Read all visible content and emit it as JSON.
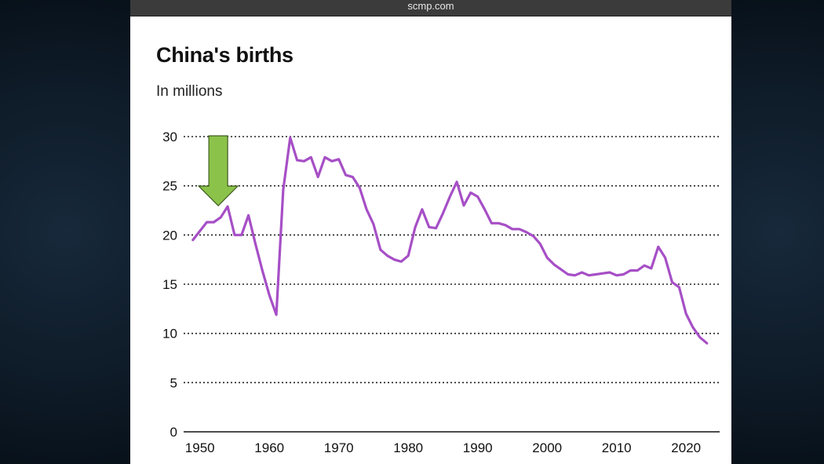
{
  "browser": {
    "url": "scmp.com"
  },
  "chart_data": {
    "type": "line",
    "title": "China's births",
    "subtitle": "In millions",
    "xlabel": "",
    "ylabel": "",
    "xlim": [
      1948,
      2025
    ],
    "ylim": [
      0,
      30
    ],
    "yticks": [
      0,
      5,
      10,
      15,
      20,
      25,
      30
    ],
    "xticks": [
      1950,
      1960,
      1970,
      1980,
      1990,
      2000,
      2010,
      2020
    ],
    "grid": "horizontal dotted",
    "line_color": "#a64fc6",
    "annotation": {
      "type": "arrow",
      "color": "#8bc34a",
      "points_to_year": 1954
    },
    "series": [
      {
        "x": [
          1949,
          1950,
          1951,
          1952,
          1953,
          1954,
          1955,
          1956,
          1957,
          1958,
          1959,
          1960,
          1961,
          1962,
          1963,
          1964,
          1965,
          1966,
          1967,
          1968,
          1969,
          1970,
          1971,
          1972,
          1973,
          1974,
          1975,
          1976,
          1977,
          1978,
          1979,
          1980,
          1981,
          1982,
          1983,
          1984,
          1985,
          1986,
          1987,
          1988,
          1989,
          1990,
          1991,
          1992,
          1993,
          1994,
          1995,
          1996,
          1997,
          1998,
          1999,
          2000,
          2001,
          2002,
          2003,
          2004,
          2005,
          2006,
          2007,
          2008,
          2009,
          2010,
          2011,
          2012,
          2013,
          2014,
          2015,
          2016,
          2017,
          2018,
          2019,
          2020,
          2021,
          2022,
          2023
        ],
        "values": [
          19.5,
          20.4,
          21.3,
          21.3,
          21.8,
          22.9,
          20.0,
          20.0,
          22.0,
          19.1,
          16.4,
          13.9,
          11.9,
          24.6,
          29.9,
          27.6,
          27.5,
          27.9,
          25.9,
          27.9,
          27.5,
          27.7,
          26.1,
          25.9,
          24.8,
          22.6,
          21.1,
          18.5,
          17.9,
          17.5,
          17.3,
          17.9,
          20.8,
          22.6,
          20.8,
          20.7,
          22.2,
          23.9,
          25.4,
          23.0,
          24.3,
          23.9,
          22.6,
          21.2,
          21.2,
          21.0,
          20.6,
          20.6,
          20.3,
          19.9,
          19.1,
          17.7,
          17.0,
          16.5,
          16.0,
          15.9,
          16.2,
          15.9,
          16.0,
          16.1,
          16.2,
          15.9,
          16.0,
          16.4,
          16.4,
          16.9,
          16.6,
          18.8,
          17.7,
          15.2,
          14.7,
          12.0,
          10.6,
          9.6,
          9.0
        ]
      }
    ]
  }
}
